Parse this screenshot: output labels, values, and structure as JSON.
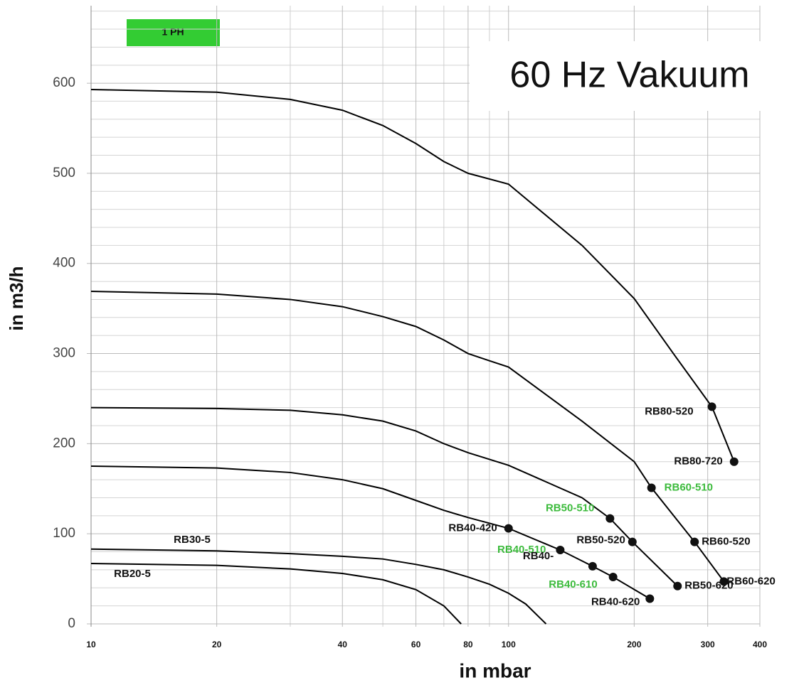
{
  "chart_data": {
    "type": "line",
    "title": "60 Hz Vakuum",
    "badge": "1 PH",
    "badge_color": "#33cc33",
    "xlabel": "in mbar",
    "ylabel": "in m3/h",
    "xscale": "log",
    "xlim": [
      10,
      400
    ],
    "ylim": [
      0,
      686
    ],
    "xticks": [
      10,
      20,
      40,
      60,
      80,
      100,
      200,
      300,
      400
    ],
    "x_minor_ticks": [
      30,
      50,
      70,
      90
    ],
    "yticks": [
      0,
      100,
      200,
      300,
      400,
      500,
      600
    ],
    "y_minor_ticks": [
      20,
      40,
      60,
      80,
      120,
      140,
      160,
      180,
      220,
      240,
      260,
      280,
      320,
      340,
      360,
      380,
      420,
      440,
      460,
      480,
      520,
      540,
      560,
      580,
      620,
      640,
      660,
      680
    ],
    "grid": true,
    "series": [
      {
        "color": "#000000",
        "x": [
          10,
          20,
          30,
          40,
          50,
          60,
          70,
          80,
          100,
          150,
          200,
          250,
          307,
          347
        ],
        "values": [
          593,
          590,
          582,
          570,
          553,
          533,
          513,
          500,
          488,
          420,
          361,
          298,
          241,
          180
        ]
      },
      {
        "color": "#000000",
        "x": [
          10,
          20,
          30,
          40,
          50,
          60,
          70,
          80,
          90,
          100,
          150,
          200,
          220,
          279,
          328
        ],
        "values": [
          369,
          366,
          360,
          352,
          341,
          330,
          315,
          300,
          292,
          285,
          225,
          180,
          151,
          91,
          47
        ]
      },
      {
        "color": "#000000",
        "x": [
          10,
          20,
          30,
          40,
          50,
          60,
          70,
          80,
          100,
          150,
          175,
          198,
          254
        ],
        "values": [
          240,
          239,
          237,
          232,
          225,
          214,
          200,
          190,
          176,
          140,
          117,
          91,
          42
        ]
      },
      {
        "color": "#000000",
        "x": [
          10,
          20,
          30,
          40,
          50,
          60,
          70,
          80,
          100,
          133,
          159,
          178,
          218
        ],
        "values": [
          175,
          173,
          168,
          160,
          150,
          137,
          126,
          118,
          106,
          82,
          64,
          52,
          28
        ]
      },
      {
        "name": "RB30-5",
        "color": "#000000",
        "x": [
          10,
          20,
          30,
          40,
          50,
          60,
          70,
          80,
          90,
          100,
          110,
          123
        ],
        "values": [
          83,
          81,
          78,
          75,
          72,
          66,
          60,
          52,
          44,
          34,
          22,
          0
        ]
      },
      {
        "name": "RB20-5",
        "color": "#000000",
        "x": [
          10,
          20,
          30,
          40,
          50,
          60,
          70,
          77
        ],
        "values": [
          67,
          65,
          61,
          56,
          49,
          38,
          20,
          0
        ]
      }
    ],
    "points": [
      {
        "label": "RB80-520",
        "x": 307,
        "y": 241,
        "color": "#111111"
      },
      {
        "label": "RB80-720",
        "x": 347,
        "y": 180,
        "color": "#111111"
      },
      {
        "label": "RB60-510",
        "x": 220,
        "y": 151,
        "color": "#3dbb3d"
      },
      {
        "label": "RB60-520",
        "x": 279,
        "y": 91,
        "color": "#111111"
      },
      {
        "label": "RB60-620",
        "x": 328,
        "y": 47,
        "color": "#111111"
      },
      {
        "label": "RB50-510",
        "x": 175,
        "y": 117,
        "color": "#3dbb3d"
      },
      {
        "label": "RB50-520",
        "x": 198,
        "y": 91,
        "color": "#111111"
      },
      {
        "label": "RB50-620",
        "x": 254,
        "y": 42,
        "color": "#111111"
      },
      {
        "label": "RB40-420",
        "x": 100,
        "y": 106,
        "color": "#111111"
      },
      {
        "label": "RB40-510",
        "x": 133,
        "y": 82,
        "color": "#3dbb3d"
      },
      {
        "label": "RB40-",
        "x": 159,
        "y": 64,
        "color": "#111111"
      },
      {
        "label": "RB40-610",
        "x": 178,
        "y": 52,
        "color": "#3dbb3d"
      },
      {
        "label": "RB40-620",
        "x": 218,
        "y": 28,
        "color": "#111111"
      }
    ]
  }
}
